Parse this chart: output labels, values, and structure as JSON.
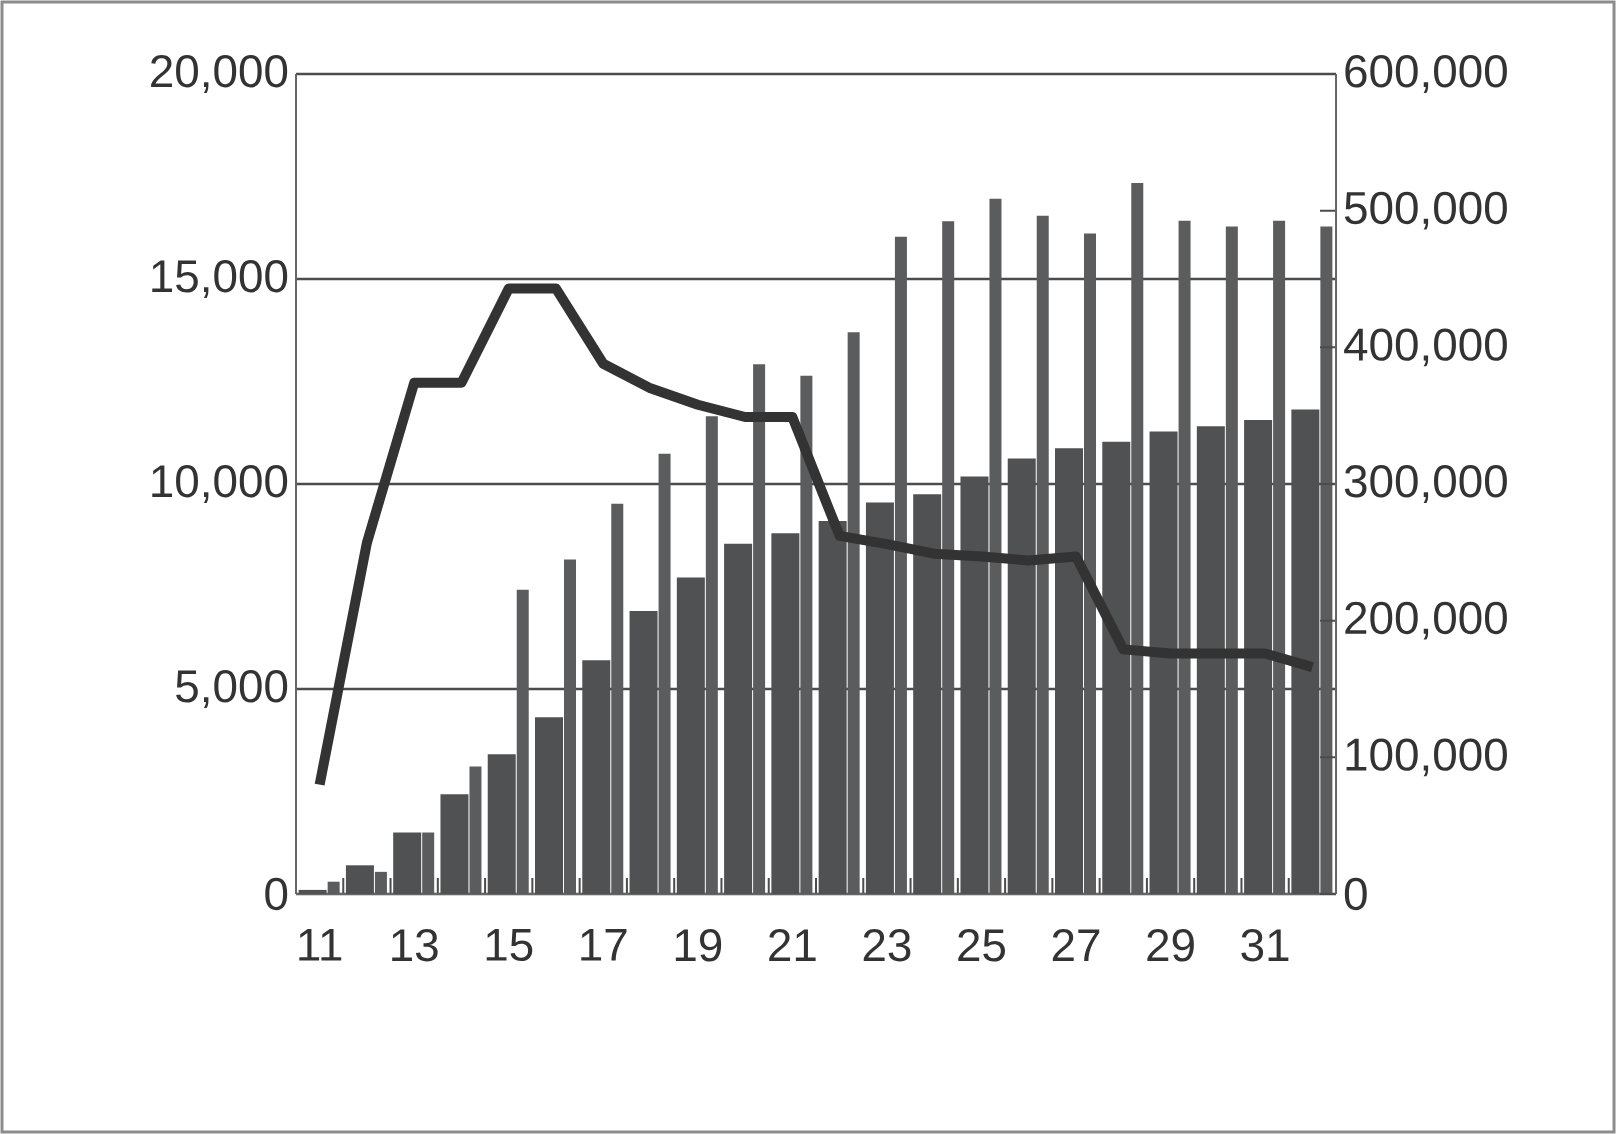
{
  "chart_data": {
    "type": "bar",
    "categories": [
      "11",
      null,
      "13",
      null,
      "15",
      null,
      "17",
      null,
      "19",
      null,
      "21",
      null,
      "23",
      null,
      "25",
      null,
      "27",
      null,
      "29",
      null,
      "31",
      null
    ],
    "series": [
      {
        "color": "#4f5152",
        "values": [
          100,
          700,
          1500,
          2430,
          3410,
          4310,
          5700,
          6900,
          7720,
          8540,
          8800,
          9100,
          9550,
          9750,
          10180,
          10620,
          10870,
          11030,
          11280,
          11410,
          11560,
          11820
        ]
      },
      {
        "color": "#5a5c5d",
        "values": [
          300,
          540,
          1500,
          3110,
          7420,
          8160,
          9520,
          10740,
          11650,
          12920,
          12640,
          13700,
          16030,
          16410,
          16960,
          16540,
          16110,
          17340,
          16420,
          16280,
          16420,
          16280
        ]
      },
      {
        "type": "line",
        "axis": "y2",
        "color": "#333333",
        "values": [
          80000,
          257000,
          374000,
          374000,
          443000,
          443000,
          388000,
          370000,
          358000,
          349000,
          349000,
          262000,
          256000,
          249000,
          247000,
          244000,
          247000,
          179000,
          176000,
          176000,
          176000,
          166000
        ]
      }
    ],
    "ylim": [
      0,
      20000
    ],
    "yticks": [
      {
        "value": 0,
        "label": "0"
      },
      {
        "value": 5000,
        "label": "5,000"
      },
      {
        "value": 10000,
        "label": "10,000"
      },
      {
        "value": 15000,
        "label": "15,000"
      },
      {
        "value": 20000,
        "label": "20,000"
      }
    ],
    "y2lim": [
      0,
      600000
    ],
    "y2ticks": [
      {
        "value": 0,
        "label": "0"
      },
      {
        "value": 100000,
        "label": "100,000"
      },
      {
        "value": 200000,
        "label": "200,000"
      },
      {
        "value": 300000,
        "label": "300,000"
      },
      {
        "value": 400000,
        "label": "400,000"
      },
      {
        "value": 500000,
        "label": "500,000"
      },
      {
        "value": 600000,
        "label": "600,000"
      }
    ],
    "grid": "y"
  }
}
